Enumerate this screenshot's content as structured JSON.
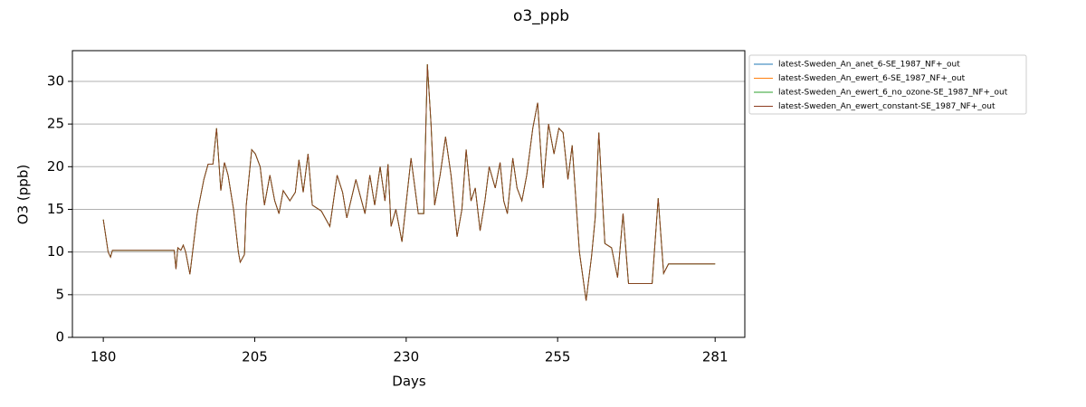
{
  "chart_data": {
    "type": "line",
    "title": "o3_ppb",
    "xlabel": "Days",
    "ylabel": "O3 (ppb)",
    "x": [
      180,
      180.8,
      181.2,
      181.5,
      191.7,
      192,
      192.3,
      192.8,
      193.2,
      193.6,
      194.3,
      195.5,
      196.6,
      197.3,
      198.1,
      198.7,
      199.4,
      200,
      200.6,
      201.5,
      202.3,
      202.6,
      203.3,
      203.6,
      204.5,
      205.1,
      205.9,
      206.6,
      207.5,
      208.3,
      209,
      209.7,
      210.8,
      211.7,
      212.3,
      213,
      213.8,
      214.5,
      216,
      217.4,
      218.6,
      219.5,
      220.2,
      221.7,
      223.2,
      224,
      224.8,
      225.7,
      226.5,
      227,
      227.5,
      228.3,
      229.3,
      230.8,
      232,
      232.9,
      233.5,
      234.1,
      234.7,
      235.6,
      236.5,
      237.4,
      238.4,
      239.2,
      239.9,
      240.7,
      241.4,
      242.2,
      243,
      243.7,
      244.7,
      245.5,
      246.1,
      246.7,
      247.6,
      248.3,
      249.1,
      249.9,
      250.9,
      251.7,
      252.6,
      253.5,
      254.4,
      255.2,
      255.9,
      256.7,
      257.4,
      258.6,
      259.7,
      260.6,
      261.2,
      261.8,
      262.8,
      263.9,
      264.9,
      265.8,
      266.7,
      270.6,
      271.6,
      272.5,
      273.3,
      281
    ],
    "series": [
      {
        "name": "latest-Sweden_An_anet_6-SE_1987_NF+_out",
        "color": "#1f77b4",
        "values": [
          13.8,
          10.0,
          9.4,
          10.2,
          10.2,
          8.0,
          10.5,
          10.2,
          10.8,
          10.0,
          7.4,
          14.5,
          18.5,
          20.3,
          20.3,
          24.5,
          17.2,
          20.5,
          19.0,
          15.0,
          10.0,
          8.8,
          9.7,
          15.5,
          22.0,
          21.5,
          20.0,
          15.5,
          19.0,
          16.0,
          14.5,
          17.2,
          16.0,
          17.0,
          20.8,
          17.0,
          21.5,
          15.5,
          14.8,
          13.0,
          19.0,
          17.0,
          14.0,
          18.5,
          14.5,
          19.0,
          15.5,
          20.0,
          16.0,
          20.3,
          13.0,
          15.0,
          11.2,
          21.0,
          14.5,
          14.5,
          32.0,
          25.0,
          15.5,
          19.0,
          23.5,
          19.0,
          11.8,
          15.0,
          22.0,
          16.0,
          17.5,
          12.5,
          16.0,
          20.0,
          17.5,
          20.5,
          16.0,
          14.5,
          21.0,
          17.5,
          16.0,
          19.0,
          24.5,
          27.5,
          17.5,
          25.0,
          21.5,
          24.5,
          24.0,
          18.5,
          22.5,
          10.0,
          4.3,
          9.5,
          14.0,
          24.0,
          11.0,
          10.5,
          7.0,
          14.5,
          6.3,
          6.3,
          16.3,
          7.5,
          8.6,
          8.6
        ]
      },
      {
        "name": "latest-Sweden_An_ewert_6-SE_1987_NF+_out",
        "color": "#ff7f0e",
        "values": [
          13.8,
          10.0,
          9.4,
          10.2,
          10.2,
          8.0,
          10.5,
          10.2,
          10.8,
          10.0,
          7.4,
          14.5,
          18.5,
          20.3,
          20.3,
          24.5,
          17.2,
          20.5,
          19.0,
          15.0,
          10.0,
          8.8,
          9.7,
          15.5,
          22.0,
          21.5,
          20.0,
          15.5,
          19.0,
          16.0,
          14.5,
          17.2,
          16.0,
          17.0,
          20.8,
          17.0,
          21.5,
          15.5,
          14.8,
          13.0,
          19.0,
          17.0,
          14.0,
          18.5,
          14.5,
          19.0,
          15.5,
          20.0,
          16.0,
          20.3,
          13.0,
          15.0,
          11.2,
          21.0,
          14.5,
          14.5,
          32.0,
          25.0,
          15.5,
          19.0,
          23.5,
          19.0,
          11.8,
          15.0,
          22.0,
          16.0,
          17.5,
          12.5,
          16.0,
          20.0,
          17.5,
          20.5,
          16.0,
          14.5,
          21.0,
          17.5,
          16.0,
          19.0,
          24.5,
          27.5,
          17.5,
          25.0,
          21.5,
          24.5,
          24.0,
          18.5,
          22.5,
          10.0,
          4.3,
          9.5,
          14.0,
          24.0,
          11.0,
          10.5,
          7.0,
          14.5,
          6.3,
          6.3,
          16.3,
          7.5,
          8.6,
          8.6
        ]
      },
      {
        "name": "latest-Sweden_An_ewert_6_no_ozone-SE_1987_NF+_out",
        "color": "#2ca02c",
        "values": [
          13.8,
          10.0,
          9.4,
          10.2,
          10.2,
          8.0,
          10.5,
          10.2,
          10.8,
          10.0,
          7.4,
          14.5,
          18.5,
          20.3,
          20.3,
          24.5,
          17.2,
          20.5,
          19.0,
          15.0,
          10.0,
          8.8,
          9.7,
          15.5,
          22.0,
          21.5,
          20.0,
          15.5,
          19.0,
          16.0,
          14.5,
          17.2,
          16.0,
          17.0,
          20.8,
          17.0,
          21.5,
          15.5,
          14.8,
          13.0,
          19.0,
          17.0,
          14.0,
          18.5,
          14.5,
          19.0,
          15.5,
          20.0,
          16.0,
          20.3,
          13.0,
          15.0,
          11.2,
          21.0,
          14.5,
          14.5,
          32.0,
          25.0,
          15.5,
          19.0,
          23.5,
          19.0,
          11.8,
          15.0,
          22.0,
          16.0,
          17.5,
          12.5,
          16.0,
          20.0,
          17.5,
          20.5,
          16.0,
          14.5,
          21.0,
          17.5,
          16.0,
          19.0,
          24.5,
          27.5,
          17.5,
          25.0,
          21.5,
          24.5,
          24.0,
          18.5,
          22.5,
          10.0,
          4.3,
          9.5,
          14.0,
          24.0,
          11.0,
          10.5,
          7.0,
          14.5,
          6.3,
          6.3,
          16.3,
          7.5,
          8.6,
          8.6
        ]
      },
      {
        "name": "latest-Sweden_An_ewert_constant-SE_1987_NF+_out",
        "color": "#8c3b1f",
        "values": [
          13.8,
          10.0,
          9.4,
          10.2,
          10.2,
          8.0,
          10.5,
          10.2,
          10.8,
          10.0,
          7.4,
          14.5,
          18.5,
          20.3,
          20.3,
          24.5,
          17.2,
          20.5,
          19.0,
          15.0,
          10.0,
          8.8,
          9.7,
          15.5,
          22.0,
          21.5,
          20.0,
          15.5,
          19.0,
          16.0,
          14.5,
          17.2,
          16.0,
          17.0,
          20.8,
          17.0,
          21.5,
          15.5,
          14.8,
          13.0,
          19.0,
          17.0,
          14.0,
          18.5,
          14.5,
          19.0,
          15.5,
          20.0,
          16.0,
          20.3,
          13.0,
          15.0,
          11.2,
          21.0,
          14.5,
          14.5,
          32.0,
          25.0,
          15.5,
          19.0,
          23.5,
          19.0,
          11.8,
          15.0,
          22.0,
          16.0,
          17.5,
          12.5,
          16.0,
          20.0,
          17.5,
          20.5,
          16.0,
          14.5,
          21.0,
          17.5,
          16.0,
          19.0,
          24.5,
          27.5,
          17.5,
          25.0,
          21.5,
          24.5,
          24.0,
          18.5,
          22.5,
          10.0,
          4.3,
          9.5,
          14.0,
          24.0,
          11.0,
          10.5,
          7.0,
          14.5,
          6.3,
          6.3,
          16.3,
          7.5,
          8.6,
          8.6
        ]
      }
    ],
    "xlim": [
      174.9,
      285.9
    ],
    "xticks": [
      180,
      205,
      230,
      255,
      281
    ],
    "ylim": [
      0,
      33.6
    ],
    "yticks": [
      0,
      5,
      10,
      15,
      20,
      25,
      30
    ],
    "grid": "y",
    "legend": "outside-upper-right"
  }
}
